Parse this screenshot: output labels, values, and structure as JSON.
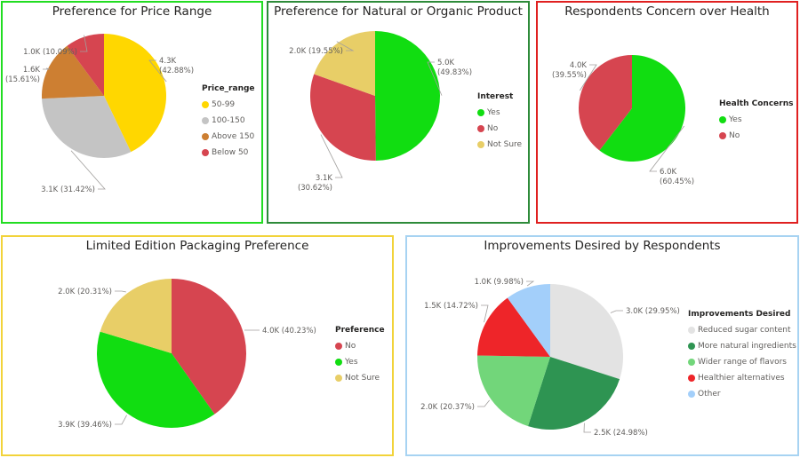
{
  "chart_data": [
    {
      "id": "price",
      "type": "pie",
      "title": "Preference for Price Range",
      "legend_title": "Price_range",
      "legend_position": "right",
      "border_color": "#22DD22",
      "slices": [
        {
          "label": "50-99",
          "value": 4.3,
          "percent": 42.88,
          "data_label": "4.3K (42.88%)",
          "color": "#FFD700"
        },
        {
          "label": "100-150",
          "value": 3.1,
          "percent": 31.42,
          "data_label": "3.1K (31.42%)",
          "color": "#C4C4C4"
        },
        {
          "label": "Above 150",
          "value": 1.6,
          "percent": 15.61,
          "data_label": "1.6K (15.61%)",
          "color": "#CD7F32"
        },
        {
          "label": "Below 50",
          "value": 1.0,
          "percent": 10.09,
          "data_label": "1.0K (10.09%)",
          "color": "#D64550"
        }
      ]
    },
    {
      "id": "organic",
      "type": "pie",
      "title": "Preference for Natural or Organic Product",
      "legend_title": "Interest",
      "legend_position": "right",
      "border_color": "#2E8B3A",
      "slices": [
        {
          "label": "Yes",
          "value": 5.0,
          "percent": 49.83,
          "data_label": "5.0K (49.83%)",
          "color": "#11DD11"
        },
        {
          "label": "No",
          "value": 3.1,
          "percent": 30.62,
          "data_label": "3.1K (30.62%)",
          "color": "#D64550"
        },
        {
          "label": "Not Sure",
          "value": 2.0,
          "percent": 19.55,
          "data_label": "2.0K (19.55%)",
          "color": "#E8CE67"
        }
      ]
    },
    {
      "id": "health",
      "type": "pie",
      "title": "Respondents Concern over Health",
      "legend_title": "Health Concerns",
      "legend_position": "right",
      "border_color": "#E02020",
      "slices": [
        {
          "label": "Yes",
          "value": 6.0,
          "percent": 60.45,
          "data_label": "6.0K (60.45%)",
          "color": "#11DD11"
        },
        {
          "label": "No",
          "value": 4.0,
          "percent": 39.55,
          "data_label": "4.0K (39.55%)",
          "color": "#D64550"
        }
      ]
    },
    {
      "id": "packaging",
      "type": "pie",
      "title": "Limited Edition Packaging Preference",
      "legend_title": "Preference",
      "legend_position": "right",
      "border_color": "#F2D33A",
      "slices": [
        {
          "label": "No",
          "value": 4.0,
          "percent": 40.23,
          "data_label": "4.0K (40.23%)",
          "color": "#D64550"
        },
        {
          "label": "Yes",
          "value": 3.9,
          "percent": 39.46,
          "data_label": "3.9K (39.46%)",
          "color": "#11DD11"
        },
        {
          "label": "Not Sure",
          "value": 2.0,
          "percent": 20.31,
          "data_label": "2.0K (20.31%)",
          "color": "#E8CE67"
        }
      ]
    },
    {
      "id": "improvements",
      "type": "pie",
      "title": "Improvements Desired by Respondents",
      "legend_title": "Improvements Desired",
      "legend_position": "right",
      "border_color": "#A7D3F2",
      "slices": [
        {
          "label": "Reduced sugar content",
          "value": 3.0,
          "percent": 29.95,
          "data_label": "3.0K (29.95%)",
          "color": "#E3E3E3"
        },
        {
          "label": "More natural ingredients",
          "value": 2.5,
          "percent": 24.98,
          "data_label": "2.5K (24.98%)",
          "color": "#2E9452"
        },
        {
          "label": "Wider range of flavors",
          "value": 2.0,
          "percent": 20.37,
          "data_label": "2.0K (20.37%)",
          "color": "#72D67A"
        },
        {
          "label": "Healthier alternatives",
          "value": 1.5,
          "percent": 14.72,
          "data_label": "1.5K (14.72%)",
          "color": "#EE2529"
        },
        {
          "label": "Other",
          "value": 1.0,
          "percent": 9.98,
          "data_label": "1.0K (9.98%)",
          "color": "#A3CFFA"
        }
      ]
    }
  ]
}
